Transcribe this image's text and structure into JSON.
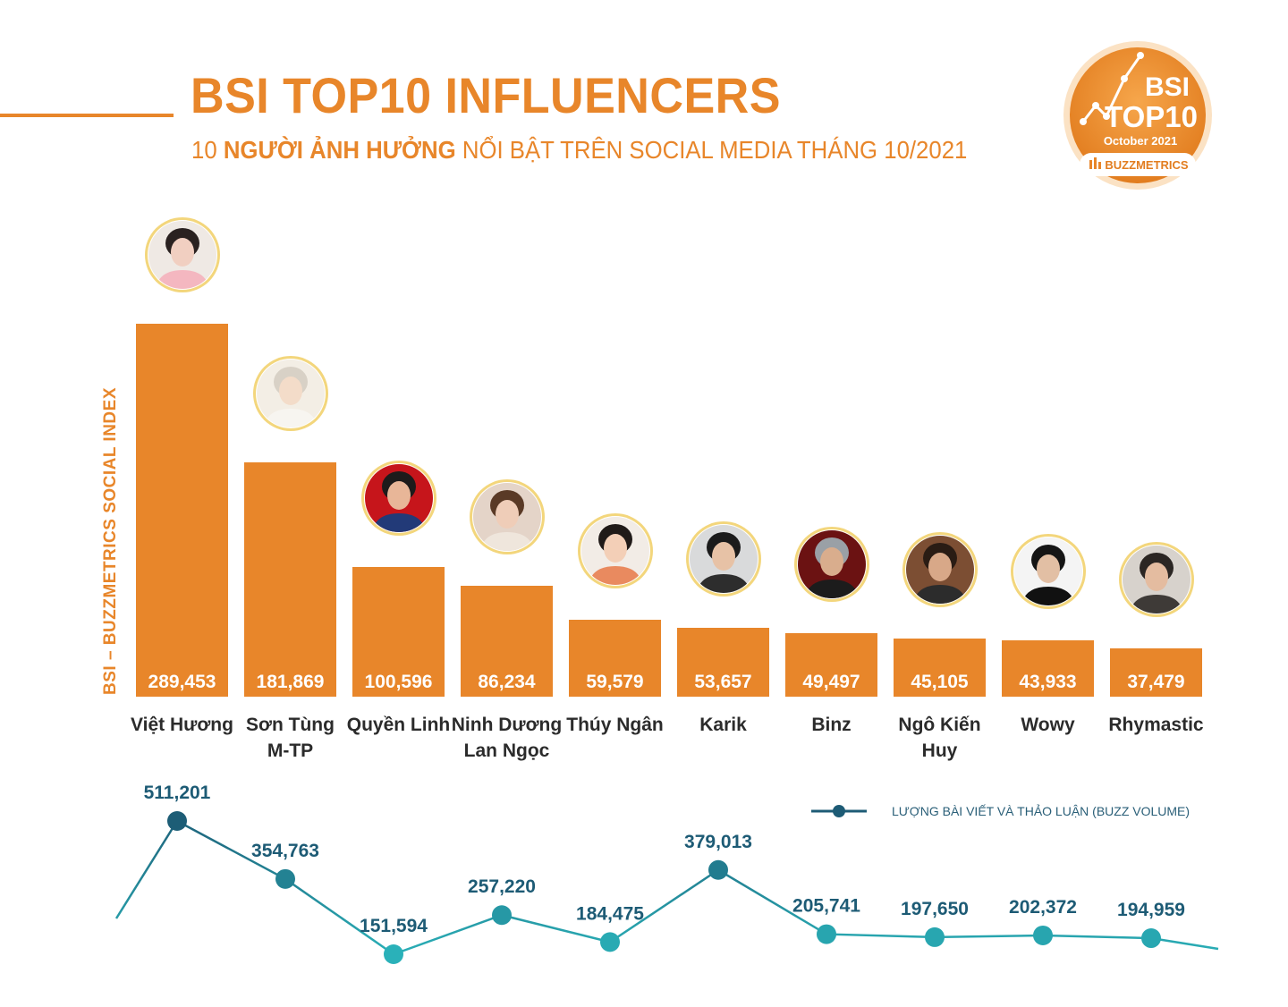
{
  "header": {
    "title": "BSI TOP10 INFLUENCERS",
    "subtitle_prefix": "10 ",
    "subtitle_bold": "NGƯỜI ẢNH HƯỞNG",
    "subtitle_suffix": " NỔI BẬT TRÊN SOCIAL MEDIA THÁNG 10/2021"
  },
  "badge": {
    "line1": "BSI",
    "line2": "TOP10",
    "period": "October 2021",
    "brand": "BUZZMETRICS"
  },
  "colors": {
    "accent": "#e8862a",
    "line_dark": "#1d5b75",
    "line_light": "#2ab3ba",
    "label": "#2b2b2b"
  },
  "chart_data": [
    {
      "type": "bar",
      "ylabel": "BSI – BUZZMETRICS SOCIAL INDEX",
      "categories": [
        "Việt Hương",
        "Sơn Tùng M-TP",
        "Quyền Linh",
        "Ninh Dương Lan Ngọc",
        "Thúy Ngân",
        "Karik",
        "Binz",
        "Ngô Kiến Huy",
        "Wowy",
        "Rhymastic"
      ],
      "category_lines": [
        [
          "Việt Hương"
        ],
        [
          "Sơn Tùng",
          "M-TP"
        ],
        [
          "Quyền Linh"
        ],
        [
          "Ninh Dương",
          "Lan Ngọc"
        ],
        [
          "Thúy Ngân"
        ],
        [
          "Karik"
        ],
        [
          "Binz"
        ],
        [
          "Ngô Kiến",
          "Huy"
        ],
        [
          "Wowy"
        ],
        [
          "Rhymastic"
        ]
      ],
      "values": [
        289453,
        181869,
        100596,
        86234,
        59579,
        53657,
        49497,
        45105,
        43933,
        37479
      ],
      "value_labels": [
        "289,453",
        "181,869",
        "100,596",
        "86,234",
        "59,579",
        "53,657",
        "49,497",
        "45,105",
        "43,933",
        "37,479"
      ]
    },
    {
      "type": "line",
      "legend": "LƯỢNG BÀI VIẾT VÀ THẢO LUẬN (BUZZ VOLUME)",
      "categories": [
        "Việt Hương",
        "Sơn Tùng M-TP",
        "Quyền Linh",
        "Ninh Dương Lan Ngọc",
        "Thúy Ngân",
        "Karik",
        "Binz",
        "Ngô Kiến Huy",
        "Wowy",
        "Rhymastic"
      ],
      "values": [
        511201,
        354763,
        151594,
        257220,
        184475,
        379013,
        205741,
        197650,
        202372,
        194959
      ],
      "value_labels": [
        "511,201",
        "354,763",
        "151,594",
        "257,220",
        "184,475",
        "379,013",
        "205,741",
        "197,650",
        "202,372",
        "194,959"
      ]
    }
  ]
}
